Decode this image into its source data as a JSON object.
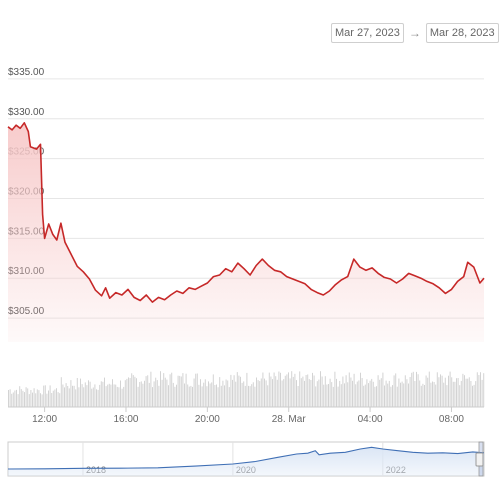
{
  "date_range": {
    "from": "Mar 27, 2023",
    "arrow": "→",
    "to": "Mar 28, 2023"
  },
  "colors": {
    "price_line": "#c62828",
    "price_fill": "#f7c9c9",
    "volume": "#d3d3d3",
    "navigator_line": "#3f6fb5",
    "navigator_fill": "#dbe6f5",
    "grid": "#e6e6e6"
  },
  "chart_data": {
    "type": "line",
    "title": "",
    "xlabel": "",
    "ylabel": "",
    "y_tick_labels": [
      "$305.00",
      "$310.00",
      "$315.00",
      "$320.00",
      "$325.00",
      "$330.00",
      "$335.00"
    ],
    "y_ticks": [
      305,
      310,
      315,
      320,
      325,
      330,
      335
    ],
    "ylim": [
      302,
      338
    ],
    "x_tick_labels": [
      "12:00",
      "16:00",
      "20:00",
      "28. Mar",
      "04:00",
      "08:00"
    ],
    "x_ticks": [
      "2023-03-27 12:00",
      "2023-03-27 16:00",
      "2023-03-27 20:00",
      "2023-03-28 00:00",
      "2023-03-28 04:00",
      "2023-03-28 08:00"
    ],
    "xlim": [
      "2023-03-27 10:12",
      "2023-03-28 09:36"
    ],
    "grid": true,
    "series": [
      {
        "values": [
          [
            "2023-03-27 10:12",
            329.0
          ],
          [
            "2023-03-27 10:24",
            328.6
          ],
          [
            "2023-03-27 10:36",
            329.2
          ],
          [
            "2023-03-27 10:48",
            328.8
          ],
          [
            "2023-03-27 11:00",
            329.5
          ],
          [
            "2023-03-27 11:12",
            328.4
          ],
          [
            "2023-03-27 11:18",
            326.5
          ],
          [
            "2023-03-27 11:36",
            326.2
          ],
          [
            "2023-03-27 11:48",
            326.8
          ],
          [
            "2023-03-27 11:54",
            318.0
          ],
          [
            "2023-03-27 12:00",
            315.0
          ],
          [
            "2023-03-27 12:12",
            316.8
          ],
          [
            "2023-03-27 12:24",
            315.5
          ],
          [
            "2023-03-27 12:36",
            314.8
          ],
          [
            "2023-03-27 12:48",
            316.9
          ],
          [
            "2023-03-27 13:00",
            314.5
          ],
          [
            "2023-03-27 13:18",
            313.0
          ],
          [
            "2023-03-27 13:36",
            311.5
          ],
          [
            "2023-03-27 13:54",
            310.8
          ],
          [
            "2023-03-27 14:12",
            309.9
          ],
          [
            "2023-03-27 14:30",
            308.5
          ],
          [
            "2023-03-27 14:48",
            307.8
          ],
          [
            "2023-03-27 15:00",
            308.8
          ],
          [
            "2023-03-27 15:12",
            307.5
          ],
          [
            "2023-03-27 15:30",
            308.2
          ],
          [
            "2023-03-27 15:48",
            307.9
          ],
          [
            "2023-03-27 16:06",
            308.6
          ],
          [
            "2023-03-27 16:24",
            307.6
          ],
          [
            "2023-03-27 16:42",
            307.2
          ],
          [
            "2023-03-27 17:00",
            307.9
          ],
          [
            "2023-03-27 17:18",
            307.0
          ],
          [
            "2023-03-27 17:36",
            307.6
          ],
          [
            "2023-03-27 17:54",
            307.3
          ],
          [
            "2023-03-27 18:12",
            307.9
          ],
          [
            "2023-03-27 18:30",
            308.4
          ],
          [
            "2023-03-27 18:48",
            308.1
          ],
          [
            "2023-03-27 19:06",
            308.8
          ],
          [
            "2023-03-27 19:24",
            308.6
          ],
          [
            "2023-03-27 19:42",
            309.0
          ],
          [
            "2023-03-27 20:00",
            309.4
          ],
          [
            "2023-03-27 20:18",
            310.2
          ],
          [
            "2023-03-27 20:36",
            310.4
          ],
          [
            "2023-03-27 20:54",
            311.2
          ],
          [
            "2023-03-27 21:12",
            310.8
          ],
          [
            "2023-03-27 21:30",
            311.9
          ],
          [
            "2023-03-27 21:48",
            311.2
          ],
          [
            "2023-03-27 22:06",
            310.4
          ],
          [
            "2023-03-27 22:24",
            311.6
          ],
          [
            "2023-03-27 22:42",
            312.4
          ],
          [
            "2023-03-27 23:00",
            311.6
          ],
          [
            "2023-03-27 23:18",
            311.0
          ],
          [
            "2023-03-27 23:36",
            310.8
          ],
          [
            "2023-03-27 23:54",
            310.2
          ],
          [
            "2023-03-28 00:12",
            309.9
          ],
          [
            "2023-03-28 00:30",
            309.6
          ],
          [
            "2023-03-28 00:48",
            309.3
          ],
          [
            "2023-03-28 01:06",
            308.6
          ],
          [
            "2023-03-28 01:24",
            308.2
          ],
          [
            "2023-03-28 01:42",
            307.9
          ],
          [
            "2023-03-28 02:00",
            308.4
          ],
          [
            "2023-03-28 02:18",
            309.2
          ],
          [
            "2023-03-28 02:36",
            309.8
          ],
          [
            "2023-03-28 02:54",
            310.2
          ],
          [
            "2023-03-28 03:12",
            312.4
          ],
          [
            "2023-03-28 03:30",
            311.4
          ],
          [
            "2023-03-28 03:48",
            311.0
          ],
          [
            "2023-03-28 04:06",
            311.3
          ],
          [
            "2023-03-28 04:24",
            310.6
          ],
          [
            "2023-03-28 04:42",
            310.1
          ],
          [
            "2023-03-28 05:00",
            309.9
          ],
          [
            "2023-03-28 05:18",
            309.4
          ],
          [
            "2023-03-28 05:36",
            309.9
          ],
          [
            "2023-03-28 05:54",
            310.6
          ],
          [
            "2023-03-28 06:12",
            310.3
          ],
          [
            "2023-03-28 06:30",
            310.0
          ],
          [
            "2023-03-28 06:48",
            309.6
          ],
          [
            "2023-03-28 07:06",
            309.3
          ],
          [
            "2023-03-28 07:24",
            308.8
          ],
          [
            "2023-03-28 07:42",
            308.1
          ],
          [
            "2023-03-28 08:00",
            308.6
          ],
          [
            "2023-03-28 08:18",
            309.6
          ],
          [
            "2023-03-28 08:36",
            310.2
          ],
          [
            "2023-03-28 08:48",
            312.0
          ],
          [
            "2023-03-28 09:06",
            311.4
          ],
          [
            "2023-03-28 09:24",
            309.4
          ],
          [
            "2023-03-28 09:36",
            310.0
          ]
        ]
      }
    ],
    "navigator": {
      "x_tick_labels": [
        "2018",
        "2020",
        "2022"
      ],
      "x_ticks": [
        2018,
        2020,
        2022
      ],
      "xlim": [
        2017.0,
        2023.35
      ],
      "points": [
        [
          2017.0,
          60
        ],
        [
          2017.5,
          62
        ],
        [
          2018.0,
          68
        ],
        [
          2018.5,
          70
        ],
        [
          2019.0,
          75
        ],
        [
          2019.5,
          95
        ],
        [
          2020.0,
          120
        ],
        [
          2020.3,
          150
        ],
        [
          2020.6,
          200
        ],
        [
          2020.85,
          240
        ],
        [
          2021.0,
          250
        ],
        [
          2021.1,
          280
        ],
        [
          2021.15,
          230
        ],
        [
          2021.3,
          250
        ],
        [
          2021.5,
          260
        ],
        [
          2021.7,
          300
        ],
        [
          2021.85,
          320
        ],
        [
          2022.0,
          300
        ],
        [
          2022.2,
          280
        ],
        [
          2022.4,
          260
        ],
        [
          2022.6,
          250
        ],
        [
          2022.8,
          255
        ],
        [
          2023.0,
          245
        ],
        [
          2023.2,
          265
        ],
        [
          2023.35,
          255
        ]
      ],
      "ylim": [
        0,
        360
      ]
    }
  }
}
